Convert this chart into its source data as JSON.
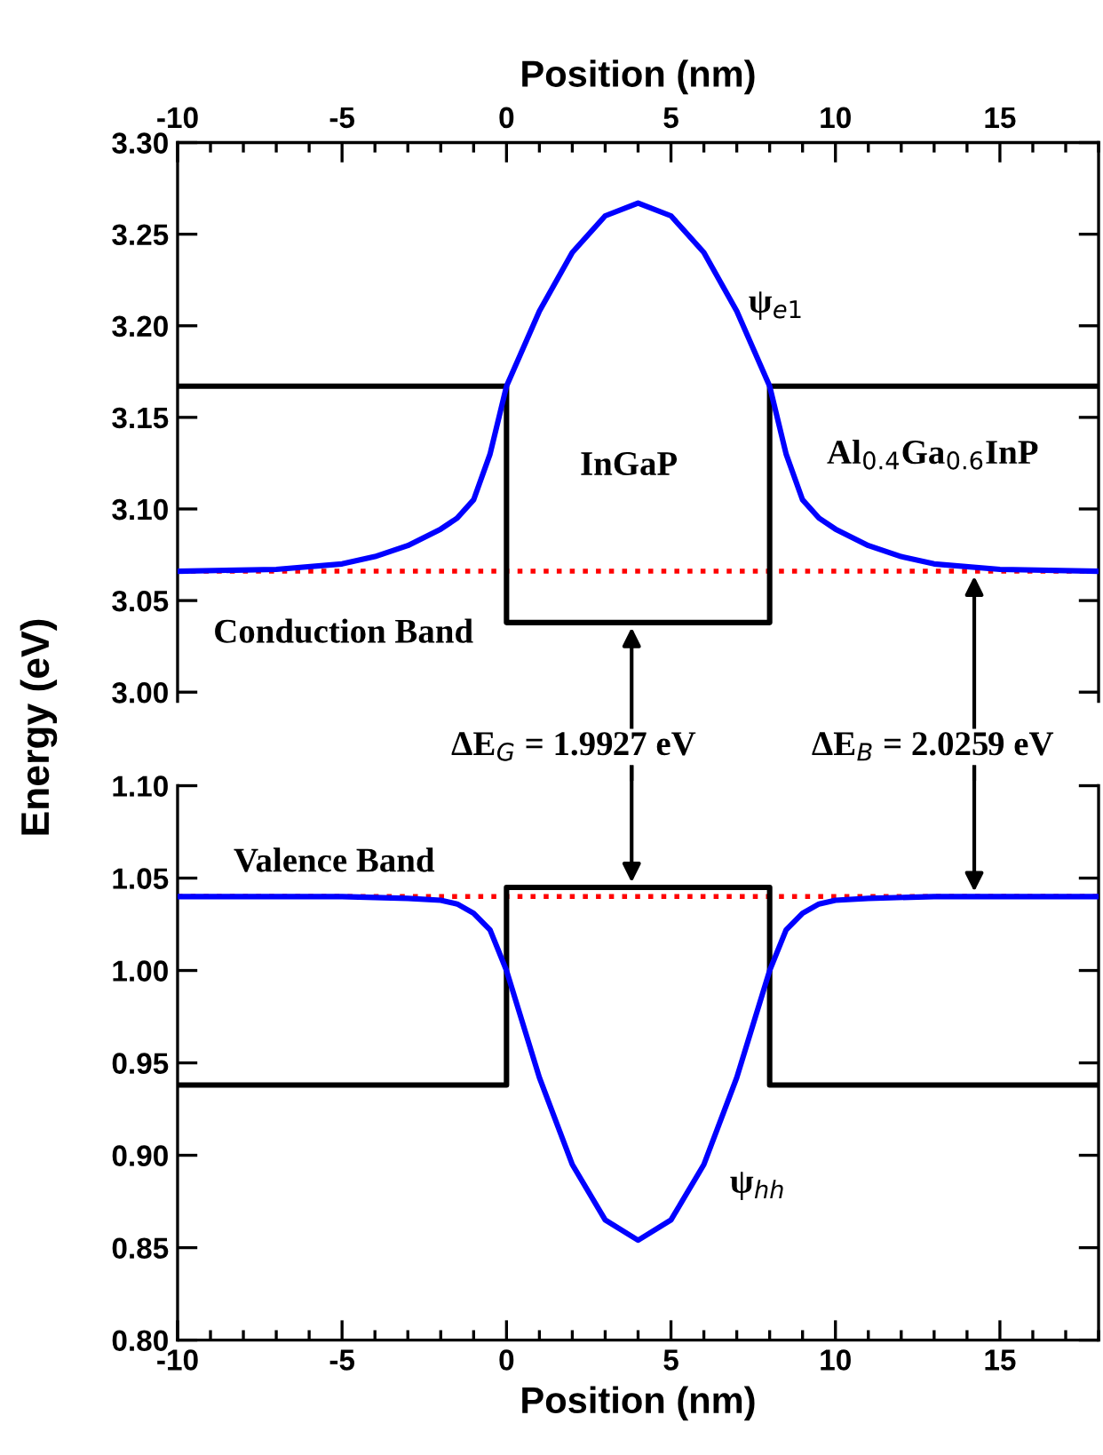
{
  "chart_data": [
    {
      "type": "line",
      "xlabel": "Position (nm)",
      "ylabel": "Energy (eV)",
      "xlim": [
        -10,
        18
      ],
      "xticks": [
        -10,
        -5,
        0,
        5,
        10,
        15
      ],
      "ylim": [
        2.995,
        3.3
      ],
      "yticks": [
        {
          "value": 3.0,
          "label": "3.00"
        },
        {
          "value": 3.05,
          "label": "3.05"
        },
        {
          "value": 3.1,
          "label": "3.10"
        },
        {
          "value": 3.15,
          "label": "3.15"
        },
        {
          "value": 3.2,
          "label": "3.20"
        },
        {
          "value": 3.25,
          "label": "3.25"
        },
        {
          "value": 3.3,
          "label": "3.30"
        }
      ],
      "grid": false,
      "legend": false,
      "marker": "none",
      "line_style": "solid",
      "series": [
        {
          "color": "#000000",
          "x": [
            -10,
            0,
            0,
            8,
            8,
            18
          ],
          "values": [
            3.167,
            3.167,
            3.038,
            3.038,
            3.167,
            3.167
          ]
        },
        {
          "color": "#0000ff",
          "x": [
            -10,
            -7,
            -5,
            -4,
            -3,
            -2,
            -1.5,
            -1,
            -0.5,
            0,
            1,
            2,
            3,
            4,
            5,
            6,
            7,
            8,
            8.5,
            9,
            9.5,
            10,
            11,
            12,
            13,
            15,
            18
          ],
          "values": [
            3.066,
            3.067,
            3.07,
            3.074,
            3.08,
            3.089,
            3.095,
            3.105,
            3.13,
            3.167,
            3.208,
            3.24,
            3.26,
            3.267,
            3.26,
            3.24,
            3.208,
            3.167,
            3.13,
            3.105,
            3.095,
            3.089,
            3.08,
            3.074,
            3.07,
            3.067,
            3.066
          ]
        }
      ],
      "ref_lines": [
        {
          "axis": "y",
          "value": 3.066,
          "color": "#ff0000",
          "line_style": "dotted"
        }
      ],
      "annotations": [
        "ψ$_{e1}$",
        "InGaP",
        "Al$_{0.4}$Ga$_{0.6}$InP",
        "Conduction Band"
      ]
    },
    {
      "type": "line",
      "xlabel": "Position (nm)",
      "xlim": [
        -10,
        18
      ],
      "xticks": [
        -10,
        -5,
        0,
        5,
        10,
        15
      ],
      "ylim": [
        0.8,
        1.1
      ],
      "yticks": [
        {
          "value": 0.8,
          "label": "0.80"
        },
        {
          "value": 0.85,
          "label": "0.85"
        },
        {
          "value": 0.9,
          "label": "0.90"
        },
        {
          "value": 0.95,
          "label": "0.95"
        },
        {
          "value": 1.0,
          "label": "1.00"
        },
        {
          "value": 1.05,
          "label": "1.05"
        },
        {
          "value": 1.1,
          "label": "1.10"
        }
      ],
      "grid": false,
      "legend": false,
      "marker": "none",
      "line_style": "solid",
      "series": [
        {
          "color": "#000000",
          "x": [
            -10,
            0,
            0,
            8,
            8,
            18
          ],
          "values": [
            0.938,
            0.938,
            1.045,
            1.045,
            0.938,
            0.938
          ]
        },
        {
          "color": "#0000ff",
          "x": [
            -10,
            -5,
            -3,
            -2,
            -1.5,
            -1,
            -0.5,
            0,
            1,
            2,
            3,
            4,
            5,
            6,
            7,
            8,
            8.5,
            9,
            9.5,
            10,
            11,
            13,
            18
          ],
          "values": [
            1.04,
            1.04,
            1.039,
            1.038,
            1.036,
            1.031,
            1.022,
            1.0,
            0.942,
            0.895,
            0.865,
            0.854,
            0.865,
            0.895,
            0.942,
            1.0,
            1.022,
            1.031,
            1.036,
            1.038,
            1.039,
            1.04,
            1.04
          ]
        }
      ],
      "ref_lines": [
        {
          "axis": "y",
          "value": 1.04,
          "color": "#ff0000",
          "line_style": "dotted"
        }
      ],
      "annotations": [
        "ΔE$_{G}$ = 1.9927 eV",
        "ΔE$_{B}$ = 2.0259 eV",
        "Valence Band",
        "ψ$_{hh}$"
      ]
    }
  ]
}
